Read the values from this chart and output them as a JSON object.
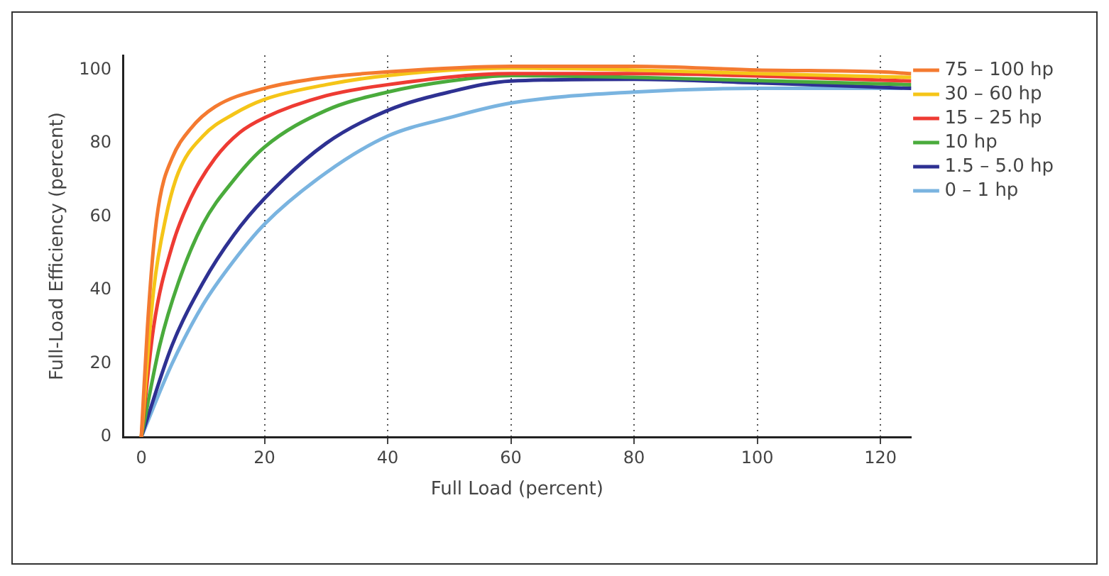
{
  "chart_data": {
    "type": "line",
    "xlabel": "Full Load (percent)",
    "ylabel": "Full-Load Efficiency (percent)",
    "xlim": [
      -3,
      125
    ],
    "ylim": [
      0,
      104
    ],
    "xticks": [
      0,
      20,
      40,
      60,
      80,
      100,
      120
    ],
    "yticks": [
      0,
      20,
      40,
      60,
      80,
      100
    ],
    "grid": "x",
    "legend": "right",
    "marker": "none",
    "line_style": "solid",
    "series": [
      {
        "name": "75 – 100 hp",
        "color": "#f47a30",
        "x": [
          0,
          1,
          2,
          3,
          5,
          8,
          12,
          20,
          30,
          40,
          60,
          80,
          100,
          120,
          125
        ],
        "values": [
          0,
          30,
          52,
          65,
          76,
          84,
          90,
          95,
          98,
          99.5,
          101,
          101,
          100,
          99.5,
          99
        ]
      },
      {
        "name": "30 – 60 hp",
        "color": "#f5c518",
        "x": [
          0,
          2,
          4,
          6,
          10,
          15,
          20,
          30,
          40,
          60,
          80,
          100,
          125
        ],
        "values": [
          0,
          40,
          60,
          72,
          82,
          88,
          92,
          96,
          98.5,
          100.5,
          100,
          99,
          98
        ]
      },
      {
        "name": "15 – 25 hp",
        "color": "#ee3b33",
        "x": [
          0,
          2,
          5,
          8,
          12,
          16,
          20,
          30,
          40,
          60,
          80,
          125
        ],
        "values": [
          0,
          30,
          52,
          65,
          76,
          83,
          87,
          93,
          96,
          99,
          99,
          97
        ]
      },
      {
        "name": "10 hp",
        "color": "#4aab3c",
        "x": [
          0,
          3,
          6,
          10,
          15,
          20,
          30,
          40,
          50,
          60,
          80,
          125
        ],
        "values": [
          0,
          25,
          42,
          58,
          70,
          79,
          89,
          94,
          97,
          98.5,
          98,
          96
        ]
      },
      {
        "name": "1.5 – 5.0 hp",
        "color": "#2e3192",
        "x": [
          0,
          5,
          10,
          15,
          20,
          30,
          40,
          50,
          60,
          80,
          100,
          125
        ],
        "values": [
          0,
          25,
          42,
          55,
          65,
          80,
          89,
          94,
          97,
          97.5,
          96.5,
          95
        ]
      },
      {
        "name": "0 – 1 hp",
        "color": "#7ab4e0",
        "x": [
          0,
          5,
          10,
          15,
          20,
          30,
          40,
          50,
          60,
          80,
          100,
          125
        ],
        "values": [
          0,
          20,
          36,
          48,
          58,
          72,
          82,
          87,
          91,
          94,
          95,
          95
        ]
      }
    ]
  }
}
